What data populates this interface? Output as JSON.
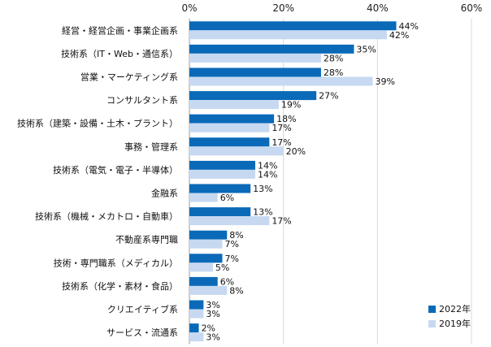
{
  "chart_data": {
    "type": "bar",
    "orientation": "horizontal",
    "title": "",
    "xlabel": "",
    "ylabel": "",
    "xlim": [
      0,
      60
    ],
    "x_ticks": [
      "0%",
      "20%",
      "40%",
      "60%"
    ],
    "x_tick_values": [
      0,
      20,
      40,
      60
    ],
    "grid": true,
    "legend_position": "bottom-right",
    "value_suffix": "%",
    "categories": [
      "経営・経営企画・事業企画系",
      "技術系（IT・Web・通信系）",
      "営業・マーケティング系",
      "コンサルタント系",
      "技術系（建築・設備・土木・プラント）",
      "事務・管理系",
      "技術系（電気・電子・半導体）",
      "金融系",
      "技術系（機械・メカトロ・自動車）",
      "不動産系専門職",
      "技術・専門職系（メディカル）",
      "技術系（化学・素材・食品）",
      "クリエイティブ系",
      "サービス・流通系"
    ],
    "series": [
      {
        "name": "2022年",
        "color": "#0a6ab8",
        "values": [
          44,
          35,
          28,
          27,
          18,
          17,
          14,
          13,
          13,
          8,
          7,
          6,
          3,
          2
        ]
      },
      {
        "name": "2019年",
        "color": "#c6d9f1",
        "values": [
          42,
          28,
          39,
          19,
          17,
          20,
          14,
          6,
          17,
          7,
          5,
          8,
          3,
          3
        ]
      }
    ]
  }
}
